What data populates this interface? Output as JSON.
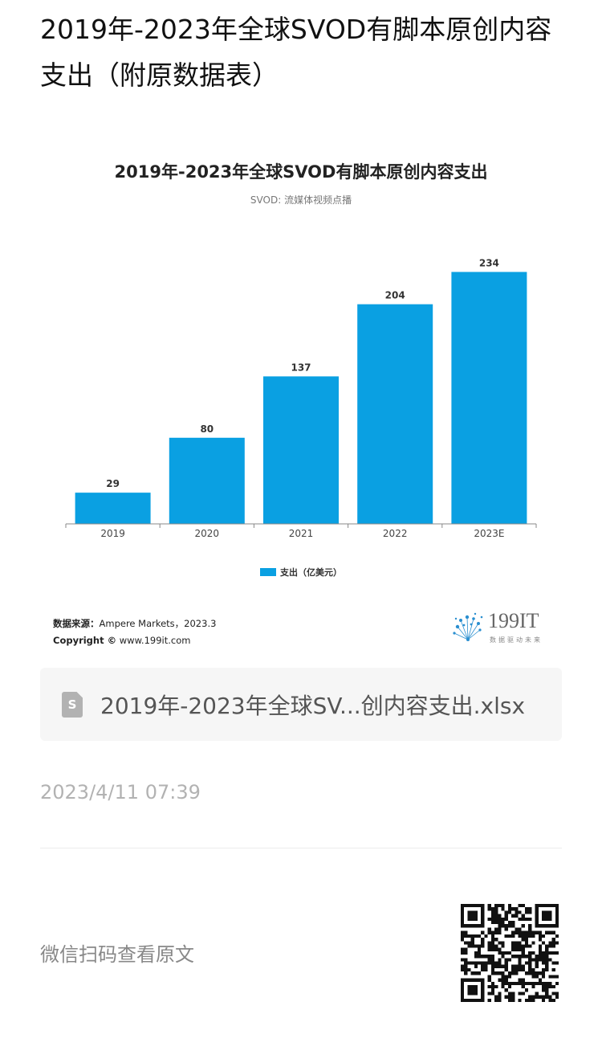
{
  "page": {
    "title": "2019年-2023年全球SVOD有脚本原创内容支出（附原数据表）"
  },
  "chart_data": {
    "type": "bar",
    "title": "2019年-2023年全球SVOD有脚本原创内容支出",
    "subtitle": "SVOD: 流媒体视频点播",
    "categories": [
      "2019",
      "2020",
      "2021",
      "2022",
      "2023E"
    ],
    "series": [
      {
        "name": "支出（亿美元）",
        "values": [
          29,
          80,
          137,
          204,
          234
        ],
        "color": "#0aa0e2"
      }
    ],
    "ylim": [
      0,
      250
    ],
    "grid": false,
    "legend_position": "bottom-center"
  },
  "chart_footer": {
    "source_label": "数据来源：",
    "source_value": "Ampere Markets，2023.3",
    "copyright_label": "Copyright ©",
    "copyright_value": " www.199it.com",
    "brand_name": "199IT",
    "brand_tagline": "数据驱动未来"
  },
  "attachment": {
    "icon": "spreadsheet-file-icon",
    "icon_letter": "S",
    "file_name": "2019年-2023年全球SV...创内容支出.xlsx"
  },
  "meta": {
    "timestamp": "2023/4/11 07:39",
    "scan_text": "微信扫码查看原文"
  }
}
